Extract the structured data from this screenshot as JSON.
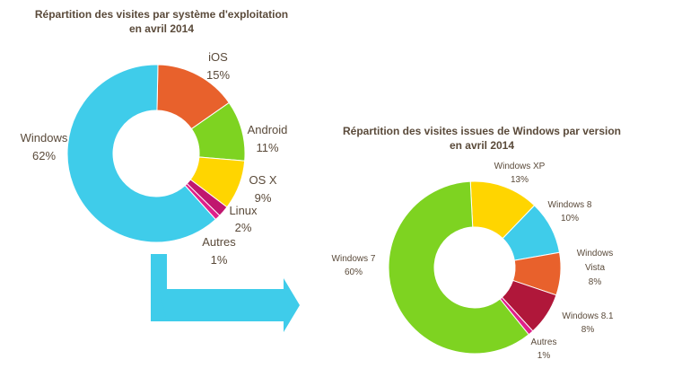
{
  "chart_data": [
    {
      "type": "pie",
      "title": [
        "Répartition des visites par système d'exploitation",
        "en avril 2014"
      ],
      "categories": [
        "iOS",
        "Android",
        "OS X",
        "Linux",
        "Autres",
        "Windows"
      ],
      "values": [
        15,
        11,
        9,
        2,
        1,
        62
      ],
      "value_labels": [
        "15%",
        "11%",
        "9%",
        "2%",
        "1%",
        "62%"
      ],
      "colors": [
        "#E8612C",
        "#7ED321",
        "#FFD500",
        "#C0166F",
        "#E0218A",
        "#3FCCEA"
      ],
      "style": "donut"
    },
    {
      "type": "pie",
      "title": [
        "Répartition des visites issues de Windows par version",
        "en avril 2014"
      ],
      "categories": [
        "Windows XP",
        "Windows 8",
        "Windows Vista",
        "Windows 8.1",
        "Autres",
        "Windows 7"
      ],
      "values": [
        13,
        10,
        8,
        8,
        1,
        60
      ],
      "value_labels": [
        "13%",
        "10%",
        "8%",
        "8%",
        "1%",
        "60%"
      ],
      "colors": [
        "#FFD500",
        "#3FCCEA",
        "#E8612C",
        "#B0173A",
        "#E0218A",
        "#7ED321"
      ],
      "style": "donut"
    }
  ],
  "connector": {
    "color": "#3FCCEA",
    "icon": "arrow-right-icon"
  }
}
